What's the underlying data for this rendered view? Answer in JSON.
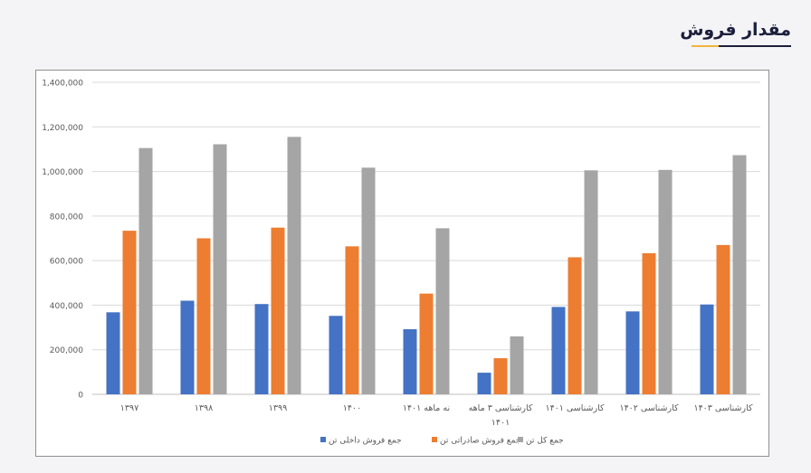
{
  "page": {
    "title": "مقدار فروش",
    "accent_colors": {
      "title": "#1b1f3b",
      "underline_accent": "#f0b53d"
    }
  },
  "chart_data": {
    "type": "bar",
    "categories": [
      "۱۳۹۷",
      "۱۳۹۸",
      "۱۳۹۹",
      "۱۴۰۰",
      "نه ماهه ۱۴۰۱",
      "کارشناسی ۳ ماهه ۱۴۰۱",
      "کارشناسی ۱۴۰۱",
      "کارشناسی ۱۴۰۲",
      "کارشناسی ۱۴۰۳"
    ],
    "series": [
      {
        "name": "جمع فروش داخلی تن",
        "color": "#4472c4",
        "values": [
          368000,
          420000,
          405000,
          352000,
          292000,
          97000,
          392000,
          372000,
          403000
        ]
      },
      {
        "name": "جمع فروش صادراتی تن",
        "color": "#ed7d31",
        "values": [
          734000,
          700000,
          748000,
          664000,
          452000,
          162000,
          615000,
          633000,
          670000
        ]
      },
      {
        "name": "جمع کل  تن",
        "color": "#a5a5a5",
        "values": [
          1105000,
          1122000,
          1155000,
          1017000,
          745000,
          260000,
          1005000,
          1007000,
          1073000
        ]
      }
    ],
    "ylim": [
      0,
      1400000
    ],
    "yticks": [
      0,
      200000,
      400000,
      600000,
      800000,
      1000000,
      1200000,
      1400000
    ],
    "ytick_labels": [
      "0",
      "200,000",
      "400,000",
      "600,000",
      "800,000",
      "1,000,000",
      "1,200,000",
      "1,400,000"
    ],
    "grid": true,
    "legend_position": "bottom",
    "title": "",
    "xlabel": "",
    "ylabel": ""
  }
}
